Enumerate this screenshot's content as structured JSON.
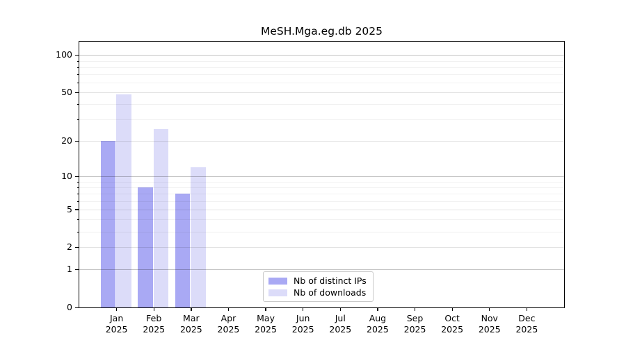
{
  "chart_data": {
    "type": "bar",
    "title": "MeSH.Mga.eg.db 2025",
    "year": "2025",
    "categories": [
      "Jan",
      "Feb",
      "Mar",
      "Apr",
      "May",
      "Jun",
      "Jul",
      "Aug",
      "Sep",
      "Oct",
      "Nov",
      "Dec"
    ],
    "series": [
      {
        "name": "Nb of distinct IPs",
        "color": "#a9a9f4",
        "values": [
          20,
          8,
          7,
          null,
          null,
          null,
          null,
          null,
          null,
          null,
          null,
          null
        ]
      },
      {
        "name": "Nb of downloads",
        "color": "#dcdcf9",
        "values": [
          48,
          25,
          12,
          null,
          null,
          null,
          null,
          null,
          null,
          null,
          null,
          null
        ]
      }
    ],
    "yscale": "log1p",
    "ylim": [
      0,
      128
    ],
    "yticks": [
      0,
      1,
      2,
      5,
      10,
      20,
      50,
      100
    ],
    "decade_gridlines": [
      1,
      10,
      100
    ],
    "minor_gridlines": [
      3,
      4,
      6,
      7,
      8,
      9,
      30,
      40,
      60,
      70,
      80,
      90
    ],
    "grid": true,
    "legend_position": "bottom-center",
    "xlabel": "",
    "ylabel": ""
  }
}
